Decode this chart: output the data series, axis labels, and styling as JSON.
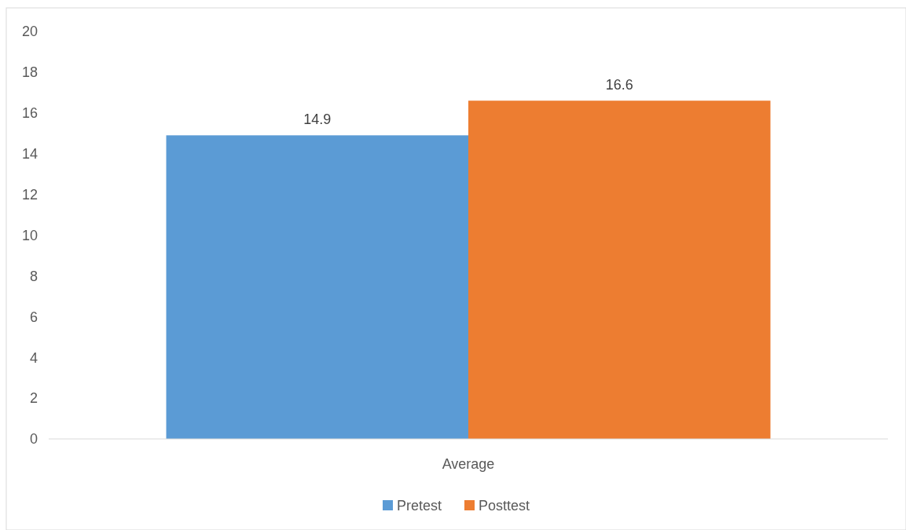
{
  "chart_data": {
    "type": "bar",
    "categories": [
      "Average"
    ],
    "series": [
      {
        "name": "Pretest",
        "color": "#5b9bd5",
        "values": [
          14.9
        ]
      },
      {
        "name": "Posttest",
        "color": "#ed7d31",
        "values": [
          16.6
        ]
      }
    ],
    "ylim": [
      0,
      20
    ],
    "yticks": [
      0,
      2,
      4,
      6,
      8,
      10,
      12,
      14,
      16,
      18,
      20
    ],
    "grid": false,
    "legend": "bottom",
    "data_labels": true
  }
}
